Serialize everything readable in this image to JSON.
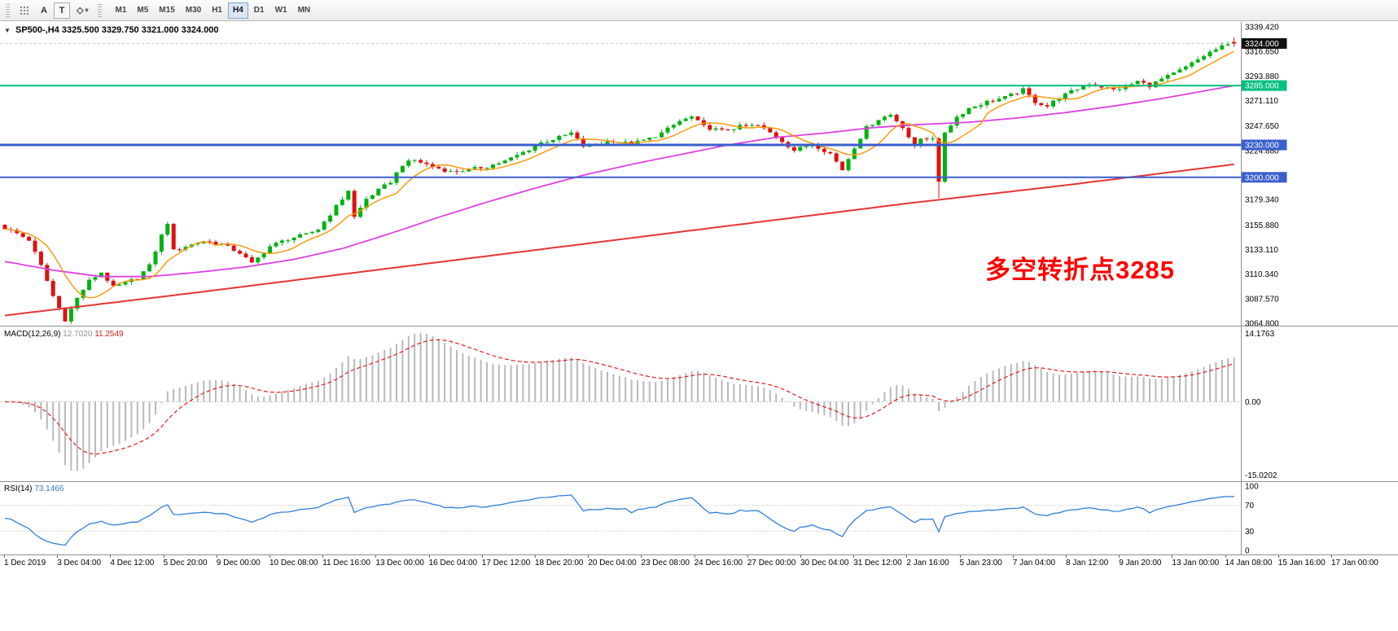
{
  "icons": {
    "collapse": "▼",
    "shapes": "◇",
    "caret": "▾"
  },
  "toolbar": {
    "label_tool": "A",
    "text_tool": "T",
    "timeframes": [
      "M1",
      "M5",
      "M15",
      "M30",
      "H1",
      "H4",
      "D1",
      "W1",
      "MN"
    ],
    "selected_timeframe": "H4"
  },
  "chart": {
    "title_symbol": "SP500-,H4",
    "title_ohlc": "3325.500 3329.750 3321.000 3324.000",
    "ohlc": {
      "open": "3325.500",
      "high": "3329.750",
      "low": "3321.000",
      "close": "3324.000"
    },
    "annotation": "多空转折点3285",
    "current_price": "3324.000",
    "price_max": 3339.42,
    "price_min": 3064.8,
    "axis_values": [
      3339.42,
      3316.65,
      3293.88,
      3271.11,
      3247.65,
      3224.88,
      3179.34,
      3155.88,
      3133.11,
      3110.34,
      3087.57,
      3064.8
    ],
    "axis_labels": [
      "3339.420",
      "3316.650",
      "3293.880",
      "3271.110",
      "3247.650",
      "3224.880",
      "3179.340",
      "3155.880",
      "3133.110",
      "3110.340",
      "3087.570",
      "3064.800"
    ],
    "levels": [
      {
        "price": 3285.0,
        "label": "3285.000",
        "color": "#00bf80",
        "width": 2
      },
      {
        "price": 3230.0,
        "label": "3230.000",
        "color": "#3a5fcd",
        "width": 3
      },
      {
        "price": 3200.0,
        "label": "3200.000",
        "color": "#3a5fcd",
        "width": 2
      }
    ],
    "colors": {
      "up": "#00b112",
      "down": "#dd1111",
      "ma_fast": "#ff9500",
      "ma_mid": "#e040e0",
      "ma_slow": "#e53535",
      "badge_price_bg": "#111111"
    }
  },
  "macd": {
    "name": "MACD(12,26,9)",
    "value_main": "12.7020",
    "value_signal": "11.2549",
    "axis": [
      "14.1763",
      "0.00",
      "-15.0202"
    ],
    "max": 14.1763,
    "min": -15.0202,
    "hist_color": "#b9b9b9",
    "signal_color": "#e02020"
  },
  "rsi": {
    "name": "RSI(14)",
    "value": "73.1466",
    "axis": [
      "100",
      "70",
      "30",
      "0"
    ],
    "axis_values": [
      100,
      70,
      30,
      0
    ],
    "levels": [
      70,
      30
    ],
    "color": "#2f7ed8"
  },
  "time_axis": [
    "1 Dec 2019",
    "3 Dec 04:00",
    "4 Dec 12:00",
    "5 Dec 20:00",
    "9 Dec 00:00",
    "10 Dec 08:00",
    "11 Dec 16:00",
    "13 Dec 00:00",
    "16 Dec 04:00",
    "17 Dec 12:00",
    "18 Dec 20:00",
    "20 Dec 04:00",
    "23 Dec 08:00",
    "24 Dec 16:00",
    "27 Dec 00:00",
    "30 Dec 04:00",
    "31 Dec 12:00",
    "2 Jan 16:00",
    "5 Jan 23:00",
    "7 Jan 04:00",
    "8 Jan 12:00",
    "9 Jan 20:00",
    "13 Jan 00:00",
    "14 Jan 08:00",
    "15 Jan 16:00",
    "17 Jan 00:00"
  ],
  "chart_data": {
    "type": "candlestick",
    "symbol": "SP500-",
    "timeframe": "H4",
    "bars": 205,
    "last_bar": {
      "open": 3325.5,
      "high": 3329.75,
      "low": 3321.0,
      "close": 3324.0
    },
    "spike": {
      "bar": 155,
      "close": 3196,
      "low": 3181
    },
    "key_levels": [
      3285,
      3230,
      3200
    ],
    "close_path": [
      [
        0,
        3153
      ],
      [
        2,
        3148
      ],
      [
        4,
        3142
      ],
      [
        6,
        3118
      ],
      [
        8,
        3090
      ],
      [
        10,
        3068
      ],
      [
        12,
        3088
      ],
      [
        14,
        3104
      ],
      [
        16,
        3112
      ],
      [
        18,
        3098
      ],
      [
        20,
        3102
      ],
      [
        22,
        3107
      ],
      [
        24,
        3118
      ],
      [
        26,
        3146
      ],
      [
        27,
        3158
      ],
      [
        28,
        3132
      ],
      [
        30,
        3136
      ],
      [
        33,
        3141
      ],
      [
        36,
        3138
      ],
      [
        39,
        3130
      ],
      [
        41,
        3120
      ],
      [
        44,
        3136
      ],
      [
        47,
        3143
      ],
      [
        50,
        3147
      ],
      [
        52,
        3152
      ],
      [
        54,
        3166
      ],
      [
        56,
        3180
      ],
      [
        57,
        3188
      ],
      [
        58,
        3163
      ],
      [
        60,
        3180
      ],
      [
        62,
        3188
      ],
      [
        64,
        3196
      ],
      [
        66,
        3212
      ],
      [
        68,
        3216
      ],
      [
        71,
        3210
      ],
      [
        74,
        3205
      ],
      [
        77,
        3207
      ],
      [
        80,
        3210
      ],
      [
        83,
        3215
      ],
      [
        86,
        3223
      ],
      [
        89,
        3232
      ],
      [
        92,
        3237
      ],
      [
        94,
        3241
      ],
      [
        96,
        3229
      ],
      [
        98,
        3231
      ],
      [
        101,
        3234
      ],
      [
        104,
        3231
      ],
      [
        107,
        3236
      ],
      [
        109,
        3241
      ],
      [
        112,
        3252
      ],
      [
        114,
        3256
      ],
      [
        116,
        3247
      ],
      [
        119,
        3243
      ],
      [
        122,
        3247
      ],
      [
        125,
        3248
      ],
      [
        128,
        3238
      ],
      [
        131,
        3225
      ],
      [
        134,
        3231
      ],
      [
        137,
        3222
      ],
      [
        139,
        3207
      ],
      [
        141,
        3228
      ],
      [
        143,
        3246
      ],
      [
        145,
        3254
      ],
      [
        147,
        3258
      ],
      [
        149,
        3247
      ],
      [
        151,
        3228
      ],
      [
        152,
        3236
      ],
      [
        154,
        3237
      ],
      [
        155,
        3196
      ],
      [
        156,
        3242
      ],
      [
        158,
        3256
      ],
      [
        160,
        3264
      ],
      [
        163,
        3270
      ],
      [
        166,
        3274
      ],
      [
        169,
        3281
      ],
      [
        171,
        3270
      ],
      [
        173,
        3266
      ],
      [
        175,
        3274
      ],
      [
        178,
        3282
      ],
      [
        180,
        3287
      ],
      [
        182,
        3284
      ],
      [
        184,
        3281
      ],
      [
        186,
        3284
      ],
      [
        188,
        3289
      ],
      [
        190,
        3285
      ],
      [
        192,
        3291
      ],
      [
        194,
        3296
      ],
      [
        196,
        3302
      ],
      [
        198,
        3309
      ],
      [
        200,
        3316
      ],
      [
        202,
        3321
      ],
      [
        204,
        3324
      ]
    ],
    "ma_mid_path": [
      [
        0,
        3122
      ],
      [
        8,
        3114
      ],
      [
        16,
        3108
      ],
      [
        24,
        3108
      ],
      [
        32,
        3112
      ],
      [
        40,
        3117
      ],
      [
        48,
        3124
      ],
      [
        56,
        3134
      ],
      [
        64,
        3148
      ],
      [
        72,
        3163
      ],
      [
        80,
        3177
      ],
      [
        88,
        3190
      ],
      [
        96,
        3202
      ],
      [
        104,
        3212
      ],
      [
        112,
        3221
      ],
      [
        120,
        3230
      ],
      [
        128,
        3237
      ],
      [
        136,
        3241
      ],
      [
        144,
        3246
      ],
      [
        152,
        3249
      ],
      [
        160,
        3251
      ],
      [
        168,
        3255
      ],
      [
        176,
        3260
      ],
      [
        184,
        3266
      ],
      [
        192,
        3273
      ],
      [
        198,
        3279
      ],
      [
        204,
        3285
      ]
    ],
    "ma_slow_path": [
      [
        0,
        3072
      ],
      [
        30,
        3092
      ],
      [
        60,
        3113
      ],
      [
        90,
        3134
      ],
      [
        120,
        3155
      ],
      [
        150,
        3176
      ],
      [
        175,
        3192
      ],
      [
        204,
        3212
      ]
    ]
  }
}
